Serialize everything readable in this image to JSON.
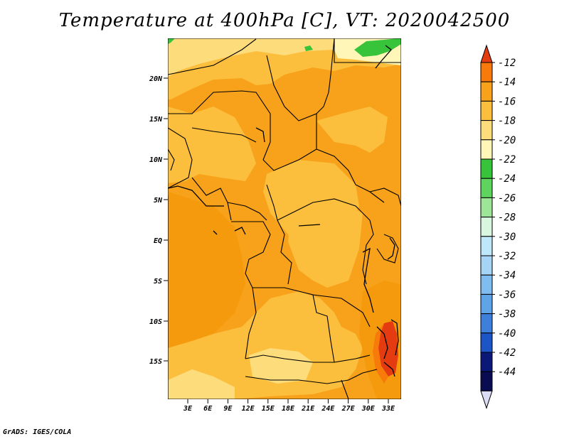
{
  "title": "Temperature at 400hPa [C], VT: 2020042500",
  "credit": "GrADS: IGES/COLA",
  "map": {
    "lat_ticks": [
      "20N",
      "15N",
      "10N",
      "5N",
      "EQ",
      "5S",
      "10S",
      "15S"
    ],
    "lon_ticks": [
      "3E",
      "6E",
      "9E",
      "12E",
      "15E",
      "18E",
      "21E",
      "24E",
      "27E",
      "30E",
      "33E"
    ]
  },
  "colorbar": {
    "labels": [
      "-12",
      "-14",
      "-16",
      "-18",
      "-20",
      "-22",
      "-24",
      "-26",
      "-28",
      "-30",
      "-32",
      "-34",
      "-36",
      "-38",
      "-40",
      "-42",
      "-44"
    ],
    "colors": [
      "#e53b10",
      "#f77a0a",
      "#f7a21a",
      "#fbbf3d",
      "#fddc7c",
      "#fff6b8",
      "#37c43b",
      "#5ed35e",
      "#9be697",
      "#d9f7df",
      "#bfe7fa",
      "#a6d4f5",
      "#7fbcf0",
      "#5fa3e8",
      "#3f7fdc",
      "#1d55c6",
      "#0c1877",
      "#0a0c52",
      "#dcdcf4"
    ]
  },
  "chart_data": {
    "type": "heatmap",
    "title": "Temperature at 400hPa [C], VT: 2020042500",
    "variable": "Temperature",
    "units": "C",
    "level": "400hPa",
    "valid_time": "2020042500",
    "lon_range": [
      "0E",
      "35E"
    ],
    "lat_range": [
      "20S",
      "25N"
    ],
    "scale_levels": [
      -44,
      -42,
      -40,
      -38,
      -36,
      -34,
      -32,
      -30,
      -28,
      -26,
      -24,
      -22,
      -20,
      -18,
      -16,
      -14,
      -12
    ],
    "observed_range": [
      -24,
      -12
    ]
  }
}
